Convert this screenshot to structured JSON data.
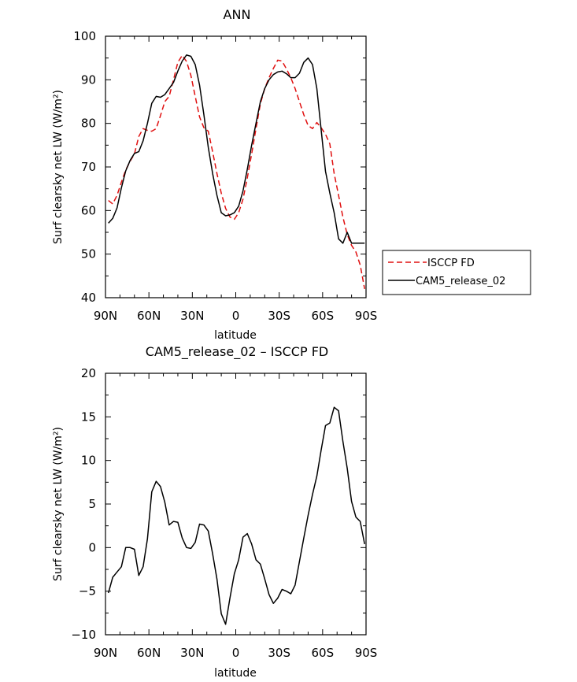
{
  "chart_data": [
    {
      "type": "line",
      "title": "ANN",
      "xlabel": "latitude",
      "ylabel": "Surf clearsky net LW (W/m²)",
      "xlim": [
        -90,
        90
      ],
      "ylim": [
        40,
        100
      ],
      "xticks": [
        -90,
        -60,
        -30,
        0,
        30,
        60,
        90
      ],
      "xtick_labels": [
        "90N",
        "60N",
        "30N",
        "0",
        "30S",
        "60S",
        "90S"
      ],
      "yticks": [
        40,
        50,
        60,
        70,
        80,
        90,
        100
      ],
      "ytick_labels": [
        "40",
        "50",
        "60",
        "70",
        "80",
        "90",
        "100"
      ],
      "grid": false,
      "legend": "right",
      "series": [
        {
          "name": "ISCCP FD",
          "color": "#e01010",
          "dash": "dashed",
          "x": [
            -88,
            -85,
            -82,
            -79,
            -76,
            -73,
            -70,
            -67,
            -64,
            -61,
            -58,
            -55,
            -52,
            -49,
            -46,
            -43,
            -40,
            -37,
            -34,
            -31,
            -28,
            -25,
            -22,
            -19,
            -16,
            -13,
            -10,
            -7,
            -4,
            -1,
            2,
            5,
            8,
            11,
            14,
            17,
            20,
            23,
            26,
            29,
            32,
            35,
            38,
            41,
            44,
            47,
            50,
            53,
            56,
            59,
            62,
            65,
            68,
            71,
            74,
            77,
            80,
            83,
            86,
            89
          ],
          "y": [
            62.3,
            61.5,
            63.5,
            66.5,
            69.3,
            71.3,
            73.0,
            77.0,
            78.8,
            78.4,
            78.2,
            78.8,
            81.8,
            85.0,
            86.2,
            90.0,
            94.0,
            95.6,
            94.2,
            91.0,
            86.2,
            81.5,
            79.0,
            78.2,
            73.5,
            68.5,
            64.0,
            60.5,
            58.5,
            58.0,
            59.5,
            62.6,
            67.5,
            73.0,
            78.8,
            84.5,
            88.0,
            90.5,
            92.6,
            94.5,
            94.3,
            92.5,
            90.5,
            88.0,
            85.0,
            82.0,
            79.5,
            78.8,
            80.2,
            79.0,
            77.5,
            75.3,
            68.5,
            63.5,
            58.5,
            54.5,
            52.0,
            50.5,
            47.5,
            42.0
          ]
        },
        {
          "name": "CAM5_release_02",
          "color": "#000000",
          "dash": "solid",
          "x": [
            -88,
            -85,
            -82,
            -79,
            -76,
            -73,
            -70,
            -67,
            -64,
            -61,
            -58,
            -55,
            -52,
            -49,
            -46,
            -43,
            -40,
            -37,
            -34,
            -31,
            -28,
            -25,
            -22,
            -19,
            -16,
            -13,
            -10,
            -7,
            -4,
            -1,
            2,
            5,
            8,
            11,
            14,
            17,
            20,
            23,
            26,
            29,
            32,
            35,
            38,
            41,
            44,
            47,
            50,
            53,
            56,
            59,
            62,
            65,
            68,
            71,
            74,
            77,
            80,
            83,
            86,
            89
          ],
          "y": [
            57.1,
            58.2,
            60.6,
            65.2,
            69.1,
            71.5,
            73.1,
            73.5,
            76.0,
            80.0,
            84.6,
            86.2,
            86.0,
            86.6,
            88.0,
            89.4,
            92.0,
            94.3,
            95.7,
            95.4,
            93.5,
            88.8,
            82.0,
            74.5,
            68.5,
            63.5,
            59.5,
            58.8,
            59.0,
            59.5,
            61.0,
            64.5,
            69.5,
            75.0,
            80.0,
            85.0,
            88.0,
            90.0,
            91.2,
            91.8,
            92.0,
            91.4,
            90.5,
            90.5,
            91.5,
            94.0,
            95.0,
            93.5,
            88.0,
            78.5,
            69.0,
            64.0,
            59.5,
            53.5,
            52.5,
            55.0,
            52.5,
            52.5,
            52.5,
            52.5
          ]
        }
      ]
    },
    {
      "type": "line",
      "title": "CAM5_release_02 – ISCCP FD",
      "xlabel": "latitude",
      "ylabel": "Surf clearsky net LW (W/m²)",
      "xlim": [
        -90,
        90
      ],
      "ylim": [
        -10,
        20
      ],
      "xticks": [
        -90,
        -60,
        -30,
        0,
        30,
        60,
        90
      ],
      "xtick_labels": [
        "90N",
        "60N",
        "30N",
        "0",
        "30S",
        "60S",
        "90S"
      ],
      "yticks": [
        -10,
        -5,
        0,
        5,
        10,
        15,
        20
      ],
      "ytick_labels": [
        "−10",
        "−5",
        "0",
        "5",
        "10",
        "15",
        "20"
      ],
      "grid": false,
      "series": [
        {
          "color": "#000000",
          "dash": "solid",
          "x": [
            -88,
            -85,
            -82,
            -79,
            -76,
            -73,
            -70,
            -67,
            -64,
            -61,
            -58,
            -55,
            -52,
            -49,
            -46,
            -43,
            -40,
            -37,
            -34,
            -31,
            -28,
            -25,
            -22,
            -19,
            -16,
            -13,
            -10,
            -7,
            -4,
            -1,
            2,
            5,
            8,
            11,
            14,
            17,
            20,
            23,
            26,
            29,
            32,
            35,
            38,
            41,
            44,
            47,
            50,
            53,
            56,
            59,
            62,
            65,
            68,
            71,
            74,
            77,
            80,
            83,
            86,
            89
          ],
          "y": [
            -5.2,
            -3.4,
            -2.8,
            -2.2,
            0.0,
            0.0,
            -0.2,
            -3.2,
            -2.2,
            1.0,
            6.4,
            7.6,
            7.0,
            5.2,
            2.6,
            3.0,
            2.9,
            1.1,
            0.0,
            -0.1,
            0.6,
            2.7,
            2.6,
            1.9,
            -0.7,
            -3.6,
            -7.6,
            -8.8,
            -5.8,
            -3.0,
            -1.4,
            1.2,
            1.6,
            0.4,
            -1.4,
            -1.9,
            -3.6,
            -5.4,
            -6.4,
            -5.8,
            -4.8,
            -5.0,
            -5.3,
            -4.3,
            -1.6,
            1.1,
            3.7,
            6.1,
            8.2,
            11.2,
            14.0,
            14.3,
            16.1,
            15.7,
            12.2,
            9.1,
            5.3,
            3.5,
            3.0,
            0.4
          ]
        }
      ]
    }
  ]
}
